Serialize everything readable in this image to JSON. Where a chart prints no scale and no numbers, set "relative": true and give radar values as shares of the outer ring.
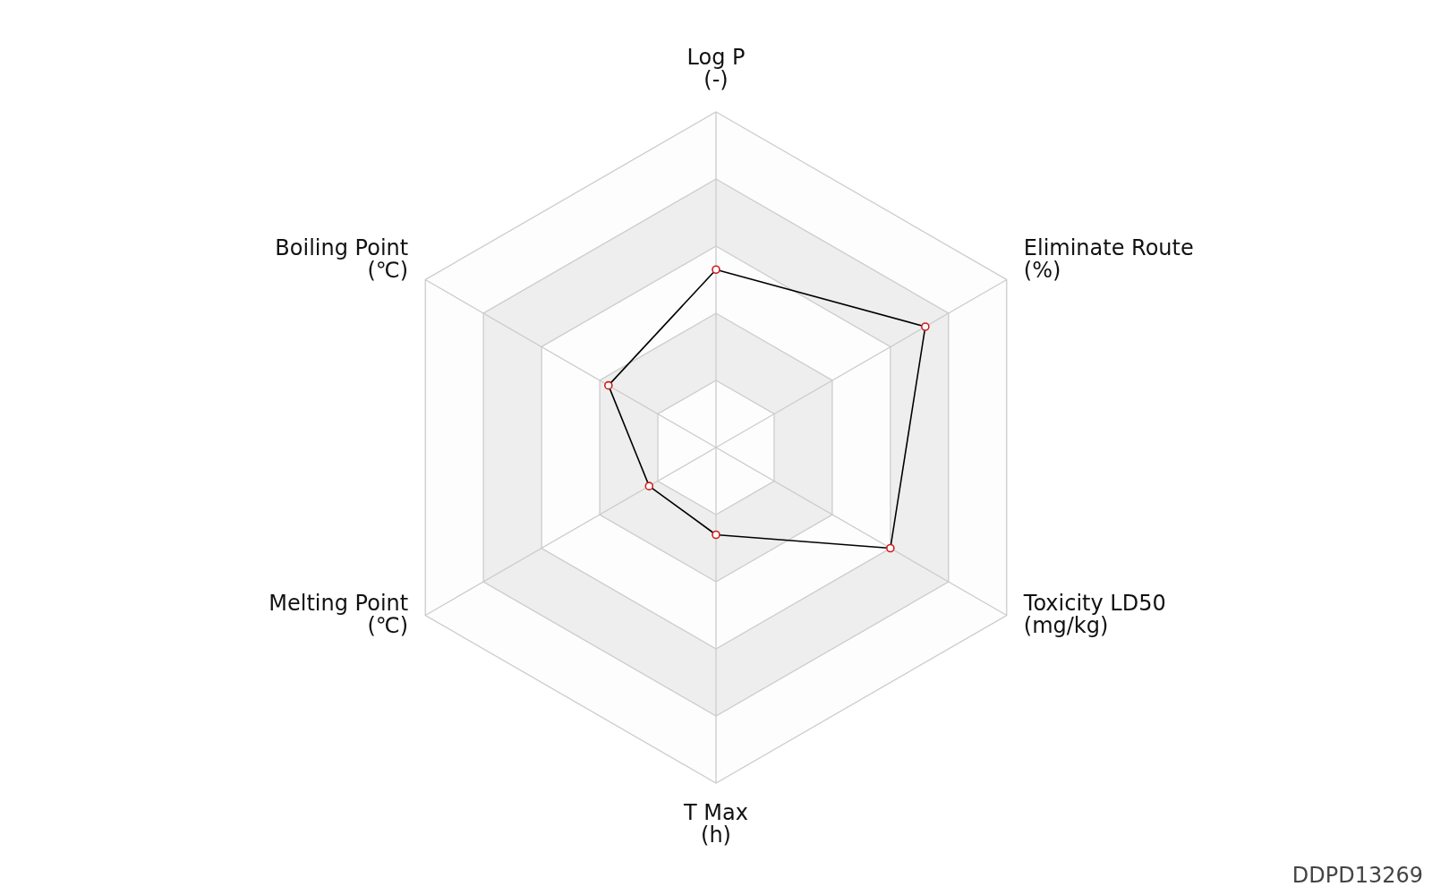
{
  "chart_data": {
    "type": "radar",
    "relative": true,
    "grid": true,
    "marker": "circle",
    "categories": [
      "Log P\n(-)",
      "Eliminate Route\n(%)",
      "Toxicity LD50\n(mg/kg)",
      "T Max\n(h)",
      "Melting Point\n(℃)",
      "Boiling Point\n(℃)"
    ],
    "series": [
      {
        "color": "#000000",
        "values": [
          0.53,
          0.72,
          0.6,
          0.26,
          0.23,
          0.37
        ]
      }
    ],
    "annotations": [
      "DDPD13269"
    ]
  }
}
